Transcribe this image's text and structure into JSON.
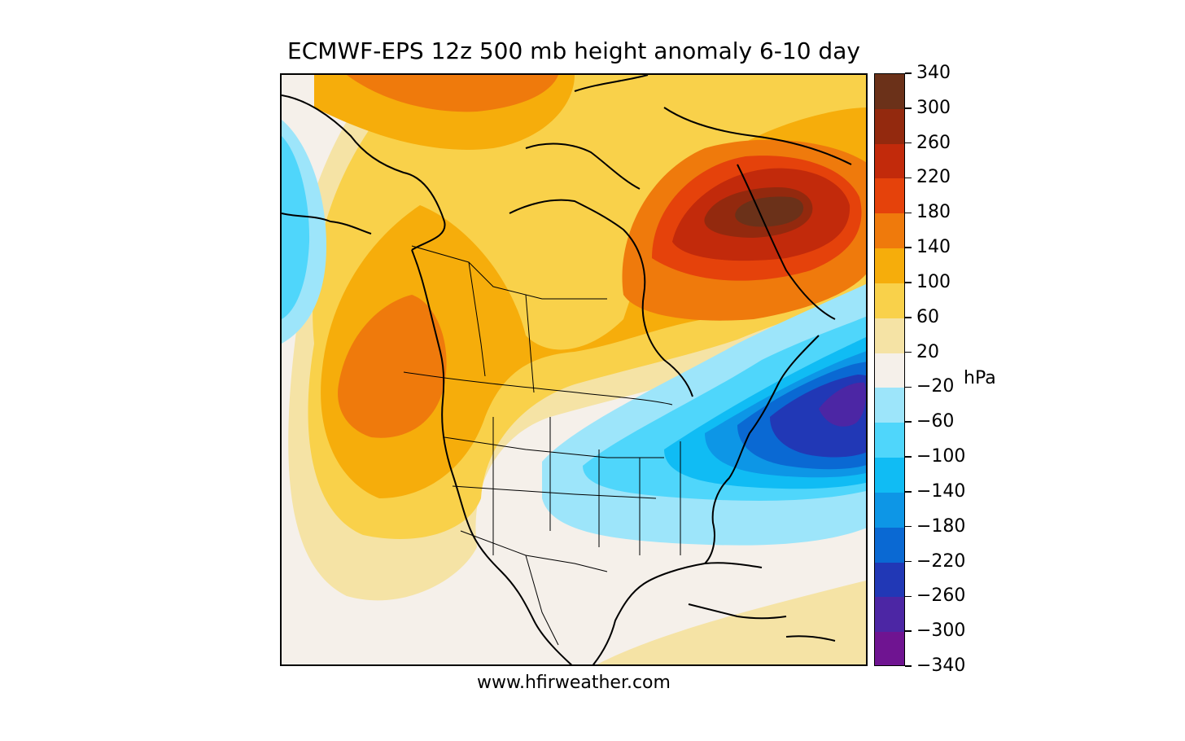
{
  "title": "ECMWF-EPS 12z 500 mb height anomaly 6-10 day",
  "credit": "www.hfirweather.com",
  "unit_label": "hPa",
  "colorbar": {
    "tick_labels": [
      "340",
      "300",
      "260",
      "220",
      "180",
      "140",
      "100",
      "60",
      "20",
      "−20",
      "−60",
      "−100",
      "−140",
      "−180",
      "−220",
      "−260",
      "−300",
      "−340"
    ],
    "bins": [
      {
        "range": "300 to 340",
        "color": "#6b3119"
      },
      {
        "range": "260 to 300",
        "color": "#93290e"
      },
      {
        "range": "220 to 260",
        "color": "#c22a0b"
      },
      {
        "range": "180 to 220",
        "color": "#e5420b"
      },
      {
        "range": "140 to 180",
        "color": "#ef7a0c"
      },
      {
        "range": "100 to 140",
        "color": "#f6ad0b"
      },
      {
        "range": "60 to 100",
        "color": "#f9d14a"
      },
      {
        "range": "20 to 60",
        "color": "#f5e3a5"
      },
      {
        "range": "-20 to 20",
        "color": "#f5f0ea"
      },
      {
        "range": "-60 to -20",
        "color": "#9de5fa"
      },
      {
        "range": "-100 to -60",
        "color": "#4fd6fb"
      },
      {
        "range": "-140 to -100",
        "color": "#10bcf4"
      },
      {
        "range": "-180 to -140",
        "color": "#0d96e6"
      },
      {
        "range": "-220 to -180",
        "color": "#0a69d3"
      },
      {
        "range": "-260 to -220",
        "color": "#2138b6"
      },
      {
        "range": "-300 to -260",
        "color": "#4c26a4"
      },
      {
        "range": "-340 to -300",
        "color": "#6f1491"
      }
    ]
  }
}
